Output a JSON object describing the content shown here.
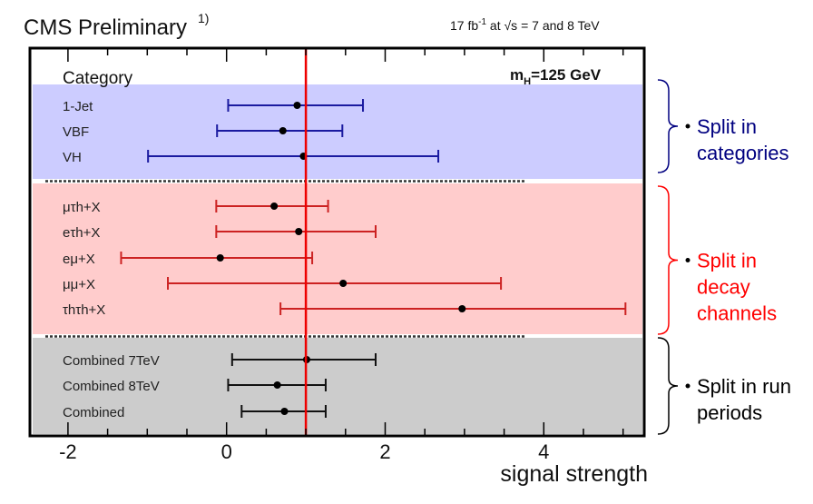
{
  "header": {
    "title": "CMS Preliminary",
    "footnote": "1)",
    "lumi": "17 fb",
    "lumi_exp": "-1",
    "energy": " at  √s = 7 and 8 TeV"
  },
  "chart_data": {
    "type": "errorbar",
    "xlabel": "signal strength",
    "xlim": [
      -2.5,
      5.2
    ],
    "xticks": [
      -2,
      0,
      2,
      4
    ],
    "xtick_labels": [
      "-2",
      "0",
      "2",
      "4"
    ],
    "reference_line": 1,
    "reference_color": "#ee0000",
    "column_header": "Category",
    "mass_label": "m",
    "mass_sub": "H",
    "mass_value": "=125 GeV",
    "grid": false,
    "groups": [
      {
        "annotation": [
          "Split in",
          "categories"
        ],
        "color": "#1a1aa0",
        "text_color": "#000080",
        "band_color": "#ccccff",
        "rows": [
          {
            "label": "1-Jet",
            "value": 0.89,
            "low": 0.02,
            "high": 1.72
          },
          {
            "label": "VBF",
            "value": 0.71,
            "low": -0.12,
            "high": 1.46
          },
          {
            "label": "VH",
            "value": 0.97,
            "low": -0.99,
            "high": 2.67
          }
        ]
      },
      {
        "annotation": [
          "Split in",
          "decay",
          "channels"
        ],
        "color": "#cc2222",
        "text_color": "#ff0000",
        "band_color": "#ffcccc",
        "rows": [
          {
            "label": "μτh+X",
            "value": 0.6,
            "low": -0.13,
            "high": 1.28
          },
          {
            "label": "eτh+X",
            "value": 0.91,
            "low": -0.13,
            "high": 1.88
          },
          {
            "label": "eμ+X",
            "value": -0.08,
            "low": -1.33,
            "high": 1.08
          },
          {
            "label": "μμ+X",
            "value": 1.47,
            "low": -0.74,
            "high": 3.46
          },
          {
            "label": "τhτh+X",
            "value": 2.97,
            "low": 0.68,
            "high": 5.03
          }
        ]
      },
      {
        "annotation": [
          "Split in run",
          "periods"
        ],
        "color": "#111111",
        "text_color": "#000000",
        "band_color": "#cccccc",
        "rows": [
          {
            "label": "Combined 7TeV",
            "value": 1.01,
            "low": 0.07,
            "high": 1.88
          },
          {
            "label": "Combined 8TeV",
            "value": 0.64,
            "low": 0.02,
            "high": 1.25
          },
          {
            "label": "Combined",
            "value": 0.73,
            "low": 0.19,
            "high": 1.25
          }
        ]
      }
    ]
  }
}
